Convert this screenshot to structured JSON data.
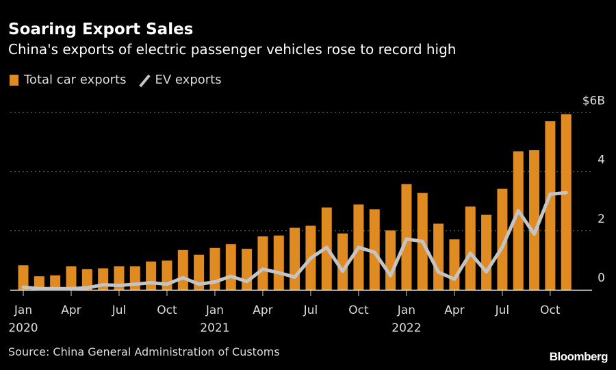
{
  "header": {
    "title": "Soaring Export Sales",
    "subtitle": "China's exports of electric passenger vehicles rose to record high"
  },
  "footer": {
    "source": "Source: China General Administration of Customs",
    "logo": "Bloomberg"
  },
  "chart_data": {
    "type": "bar",
    "title": "Soaring Export Sales",
    "subtitle": "China's exports of electric passenger vehicles rose to record high",
    "colors": {
      "total": "#e08b22",
      "ev": "#c4c4c4",
      "grid": "#666666"
    },
    "legend": {
      "placement": "top-left",
      "entries": [
        "Total car exports",
        "EV exports"
      ]
    },
    "yaxis": {
      "ticks": [
        0,
        2,
        4,
        6
      ],
      "tick_labels": [
        "0",
        "2",
        "4",
        "$6B"
      ],
      "range": [
        0,
        6
      ],
      "grid": true,
      "side": "right"
    },
    "xaxis": {
      "tick_labels": [
        {
          "index": 0,
          "month": "Jan",
          "year": "2020"
        },
        {
          "index": 3,
          "month": "Apr"
        },
        {
          "index": 6,
          "month": "Jul"
        },
        {
          "index": 9,
          "month": "Oct"
        },
        {
          "index": 12,
          "month": "Jan",
          "year": "2021"
        },
        {
          "index": 15,
          "month": "Apr"
        },
        {
          "index": 18,
          "month": "Jul"
        },
        {
          "index": 21,
          "month": "Oct"
        },
        {
          "index": 24,
          "month": "Jan",
          "year": "2022"
        },
        {
          "index": 27,
          "month": "Apr"
        },
        {
          "index": 30,
          "month": "Jul"
        },
        {
          "index": 33,
          "month": "Oct"
        }
      ]
    },
    "categories": [
      "2020-01",
      "2020-02",
      "2020-03",
      "2020-04",
      "2020-05",
      "2020-06",
      "2020-07",
      "2020-08",
      "2020-09",
      "2020-10",
      "2020-11",
      "2020-12",
      "2021-01",
      "2021-02",
      "2021-03",
      "2021-04",
      "2021-05",
      "2021-06",
      "2021-07",
      "2021-08",
      "2021-09",
      "2021-10",
      "2021-11",
      "2021-12",
      "2022-01",
      "2022-02",
      "2022-03",
      "2022-04",
      "2022-05",
      "2022-06",
      "2022-07",
      "2022-08",
      "2022-09",
      "2022-10",
      "2022-11"
    ],
    "series": [
      {
        "name": "Total car exports",
        "type": "bar",
        "values": [
          0.83,
          0.46,
          0.49,
          0.8,
          0.7,
          0.73,
          0.8,
          0.8,
          0.96,
          0.99,
          1.35,
          1.19,
          1.42,
          1.55,
          1.39,
          1.81,
          1.84,
          2.1,
          2.17,
          2.79,
          1.91,
          2.89,
          2.73,
          2.01,
          3.58,
          3.28,
          2.24,
          1.71,
          2.82,
          2.54,
          3.42,
          4.69,
          4.73,
          5.71,
          5.95
        ]
      },
      {
        "name": "EV exports",
        "type": "line",
        "values": [
          0.09,
          0.04,
          0.04,
          0.04,
          0.07,
          0.17,
          0.15,
          0.19,
          0.24,
          0.19,
          0.41,
          0.19,
          0.27,
          0.46,
          0.28,
          0.7,
          0.58,
          0.43,
          1.07,
          1.44,
          0.63,
          1.44,
          1.27,
          0.48,
          1.72,
          1.64,
          0.6,
          0.36,
          1.24,
          0.61,
          1.45,
          2.68,
          1.89,
          3.24,
          3.29
        ]
      }
    ]
  }
}
